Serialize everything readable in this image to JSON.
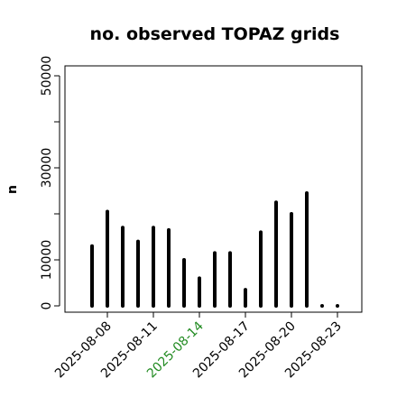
{
  "chart_data": {
    "type": "bar",
    "title": "no. observed TOPAZ grids",
    "xlabel": "",
    "ylabel": "n",
    "ylim": [
      0,
      52000
    ],
    "grid": false,
    "categories": [
      "2025-08-07",
      "2025-08-08",
      "2025-08-09",
      "2025-08-10",
      "2025-08-11",
      "2025-08-12",
      "2025-08-13",
      "2025-08-14",
      "2025-08-15",
      "2025-08-16",
      "2025-08-17",
      "2025-08-18",
      "2025-08-19",
      "2025-08-20",
      "2025-08-21",
      "2025-08-22",
      "2025-08-23"
    ],
    "values": [
      13000,
      20500,
      17000,
      14000,
      17000,
      16500,
      10000,
      6000,
      11500,
      11500,
      3500,
      16000,
      22500,
      20000,
      24500,
      0,
      0
    ],
    "x_tick_labels": [
      {
        "label": "2025-08-08",
        "color": "#000000"
      },
      {
        "label": "2025-08-11",
        "color": "#000000"
      },
      {
        "label": "2025-08-14",
        "color": "#228B22"
      },
      {
        "label": "2025-08-17",
        "color": "#000000"
      },
      {
        "label": "2025-08-20",
        "color": "#000000"
      },
      {
        "label": "2025-08-23",
        "color": "#000000"
      }
    ],
    "y_tick_labels": [
      "0",
      "10000",
      "30000",
      "50000"
    ],
    "bar_color": "#000000"
  }
}
